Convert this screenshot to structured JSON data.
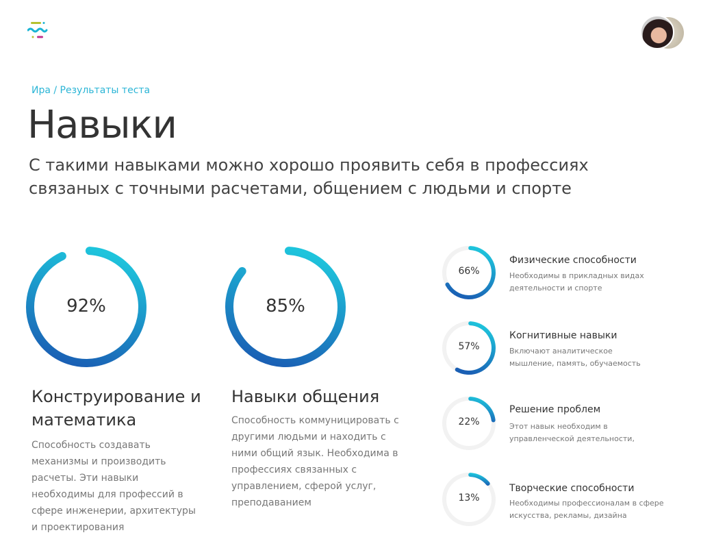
{
  "header": {
    "logo": "brand-logo",
    "avatar": "user-avatar"
  },
  "breadcrumb": "Ира / Результаты теста",
  "title": "Навыки",
  "subtitle": "С такими навыками можно хорошо проявить себя в профессиях связаных с точными расчетами, общением с людьми и спорте",
  "colors": {
    "accent": "#2bb5d6",
    "gradient_start": "#1ec4dc",
    "gradient_end": "#1a5fb4",
    "track": "#f2f2f2"
  },
  "main_skills": [
    {
      "percent": 92,
      "label": "92%",
      "title": "Конструирование и математика",
      "description": "Способность создавать механизмы и производить расчеты. Эти навыки необходимы для профессий в сфере инженерии, архитектуры и проектирования"
    },
    {
      "percent": 85,
      "label": "85%",
      "title": "Навыки общения",
      "description": "Способность коммуницировать с другими людьми и находить с ними общий язык. Необходима в профессиях связанных с управлением, сферой услуг, преподаванием"
    }
  ],
  "other_skills": [
    {
      "percent": 66,
      "label": "66%",
      "title": "Физические способности",
      "description": "Необходимы в прикладных видах деятельности и спорте"
    },
    {
      "percent": 57,
      "label": "57%",
      "title": "Когнитивные навыки",
      "description": "Включают аналитическое мышление, память, обучаемость"
    },
    {
      "percent": 22,
      "label": "22%",
      "title": "Решение проблем",
      "description": "Этот навык необходим в управленческой деятельности,"
    },
    {
      "percent": 13,
      "label": "13%",
      "title": "Творческие способности",
      "description": "Необходимы профессионалам в сфере искусства, рекламы, дизайна"
    }
  ]
}
